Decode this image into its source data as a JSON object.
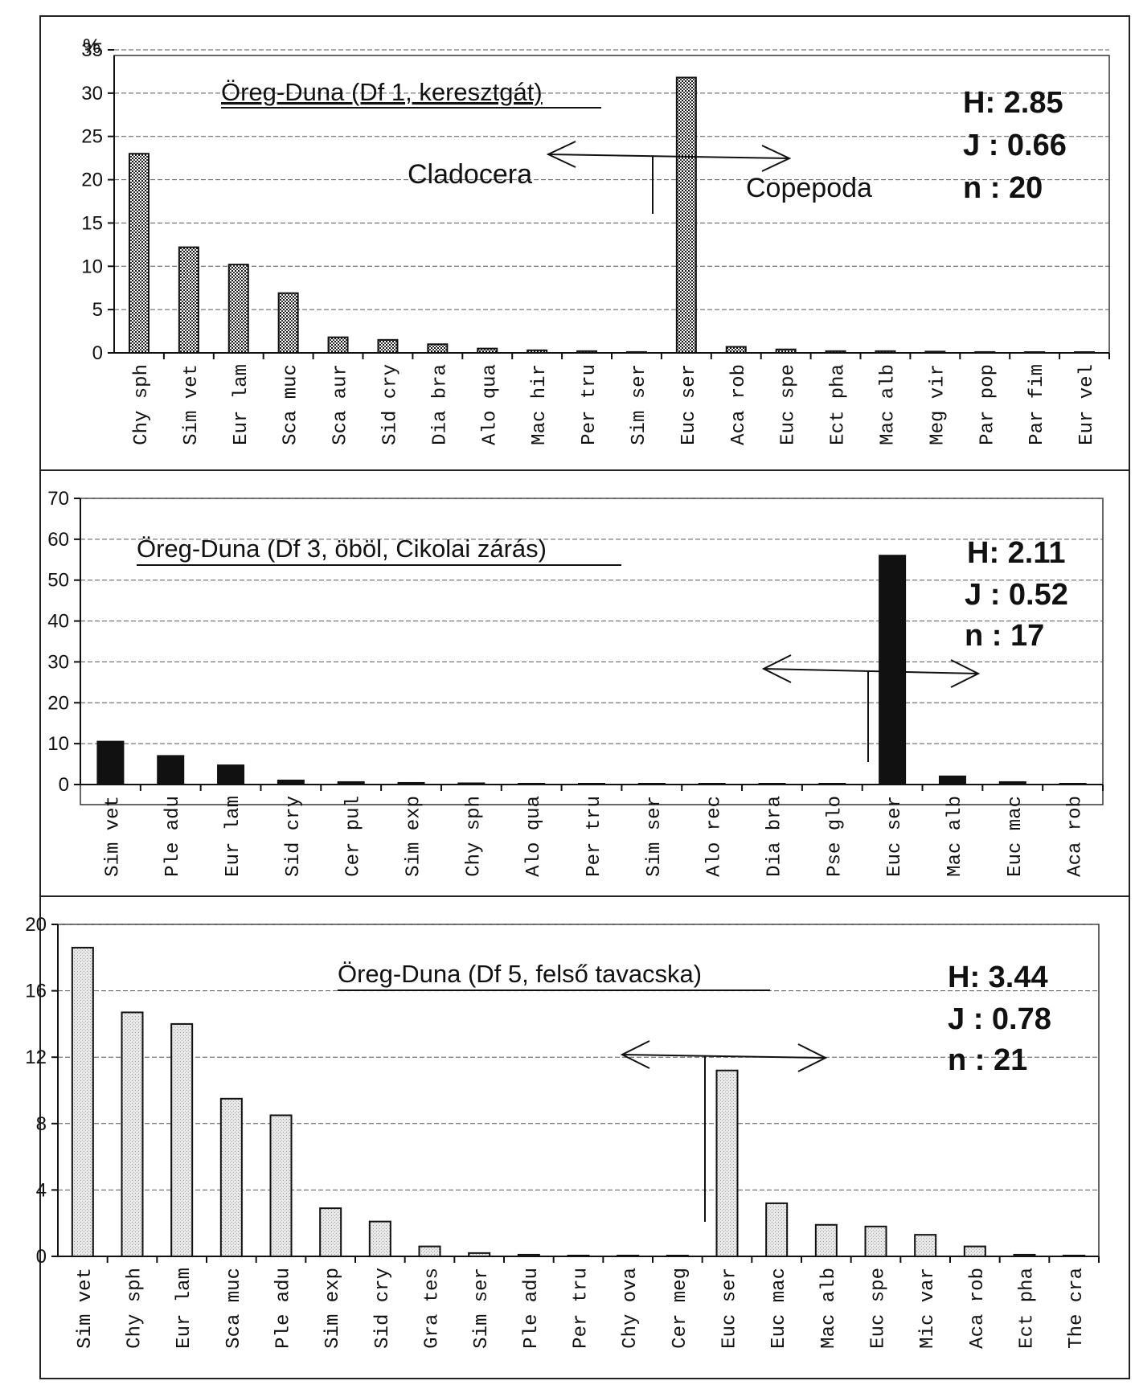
{
  "chart_data": [
    {
      "type": "bar",
      "title": "Öreg-Duna (Df 1, keresztgát)",
      "ylabel": "%",
      "ylim": [
        0,
        35
      ],
      "yticks": [
        "0",
        "5",
        "10",
        "15",
        "20",
        "25",
        "30",
        "35"
      ],
      "grid": true,
      "bar_fill": "hatched-dark",
      "stats": {
        "h": "H: 2.85",
        "j": "J : 0.66",
        "n": "n : 20"
      },
      "group_left": "Cladocera",
      "group_right": "Copepoda",
      "categories": [
        "Chy sph",
        "Sim vet",
        "Eur lam",
        "Sca muc",
        "Sca aur",
        "Sid cry",
        "Dia bra",
        "Alo qua",
        "Mac hir",
        "Per tru",
        "Sim ser",
        "Euc ser",
        "Aca rob",
        "Euc spe",
        "Ect pha",
        "Mac alb",
        "Meg vir",
        "Par pop",
        "Par fim",
        "Eur vel"
      ],
      "values": [
        23,
        12.2,
        10.2,
        6.9,
        1.8,
        1.5,
        1.0,
        0.5,
        0.3,
        0.2,
        0.1,
        31.8,
        0.7,
        0.4,
        0.2,
        0.2,
        0.15,
        0.1,
        0.05,
        0.05
      ],
      "divider_after": 11
    },
    {
      "type": "bar",
      "title": "Öreg-Duna (Df 3, öböl, Cikolai zárás)",
      "ylabel": "",
      "ylim": [
        0,
        70
      ],
      "yticks": [
        "0",
        "10",
        "20",
        "30",
        "40",
        "50",
        "60",
        "70"
      ],
      "grid": true,
      "bar_fill": "solid-black",
      "stats": {
        "h": "H: 2.11",
        "j": "J : 0.52",
        "n": "n : 17"
      },
      "categories": [
        "Sim vet",
        "Ple adu",
        "Eur lam",
        "Sid cry",
        "Cer pul",
        "Sim exp",
        "Chy sph",
        "Alo qua",
        "Per tru",
        "Sim ser",
        "Alo rec",
        "Dia bra",
        "Pse glo",
        "Euc ser",
        "Mac alb",
        "Euc mac",
        "Aca rob"
      ],
      "values": [
        10.5,
        7.0,
        4.7,
        1.0,
        0.6,
        0.4,
        0.3,
        0.2,
        0.1,
        0.1,
        0.05,
        0.05,
        0.05,
        56.0,
        2.0,
        0.6,
        0.1
      ],
      "divider_after": 13
    },
    {
      "type": "bar",
      "title": "Öreg-Duna (Df 5, felső tavacska)",
      "ylabel": "",
      "ylim": [
        0,
        20
      ],
      "yticks": [
        "0",
        "4",
        "8",
        "12",
        "16",
        "20"
      ],
      "grid": true,
      "bar_fill": "dotted-light",
      "stats": {
        "h": "H: 3.44",
        "j": "J : 0.78",
        "n": "n : 21"
      },
      "categories": [
        "Sim vet",
        "Chy sph",
        "Eur lam",
        "Sca muc",
        "Ple adu",
        "Sim exp",
        "Sid cry",
        "Gra tes",
        "Sim ser",
        "Ple adu",
        "Per tru",
        "Chy ova",
        "Cer meg",
        "Euc ser",
        "Euc mac",
        "Mac alb",
        "Euc spe",
        "Mic var",
        "Aca rob",
        "Ect pha",
        "The cra"
      ],
      "values": [
        18.6,
        14.7,
        14.0,
        9.5,
        8.5,
        2.9,
        2.1,
        0.6,
        0.2,
        0.1,
        0.05,
        0.05,
        0.0,
        11.2,
        3.2,
        1.9,
        1.8,
        1.3,
        0.6,
        0.1,
        0.05
      ],
      "divider_after": 13
    }
  ]
}
